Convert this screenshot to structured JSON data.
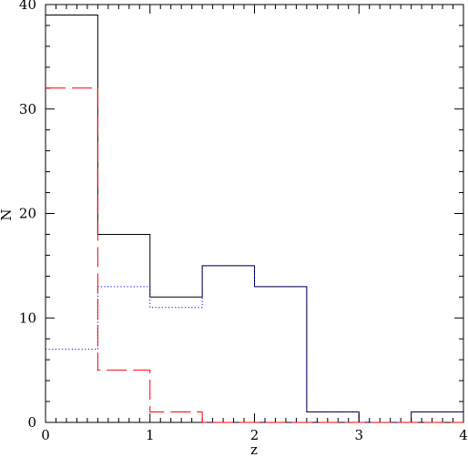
{
  "chart_data": {
    "type": "histogram",
    "xlabel": "z",
    "ylabel": "N",
    "xlim": [
      0,
      4
    ],
    "ylim": [
      0,
      40
    ],
    "x_ticks": [
      "0",
      "1",
      "2",
      "3",
      "4"
    ],
    "y_ticks": [
      "0",
      "10",
      "20",
      "30",
      "40"
    ],
    "bin_edges": [
      0,
      0.5,
      1.0,
      1.5,
      2.0,
      2.5,
      3.0,
      3.5,
      4.0
    ],
    "grid": false,
    "series": [
      {
        "style": "solid",
        "color": "#000000",
        "values": [
          39,
          18,
          12,
          15,
          13,
          1,
          0,
          1
        ]
      },
      {
        "style": "dotted",
        "color": "#0000ff",
        "values": [
          7,
          13,
          11,
          15,
          13,
          1,
          0,
          1
        ]
      },
      {
        "style": "dashed",
        "color": "#ff0000",
        "values": [
          32,
          5,
          1,
          0,
          0,
          0,
          0,
          0
        ]
      }
    ]
  }
}
